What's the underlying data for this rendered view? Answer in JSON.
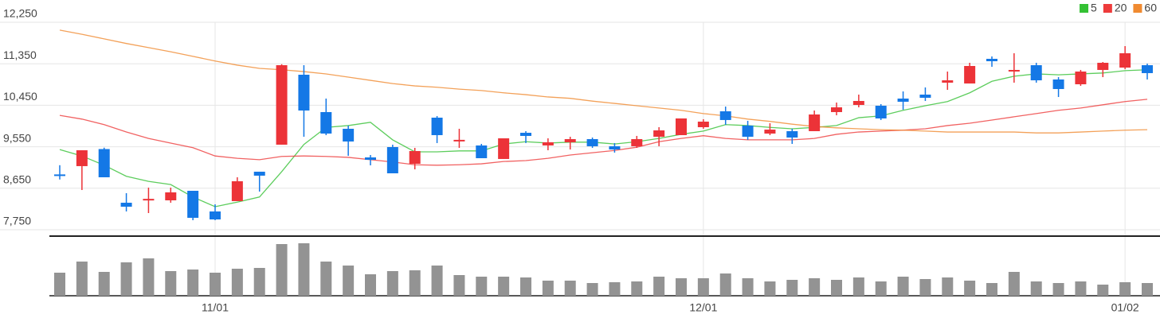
{
  "chart_data": {
    "type": "candlestick",
    "categories": [
      null,
      null,
      null,
      null,
      null,
      null,
      null,
      "11/01",
      null,
      null,
      null,
      null,
      null,
      null,
      null,
      null,
      null,
      null,
      null,
      null,
      null,
      null,
      null,
      null,
      null,
      null,
      null,
      null,
      null,
      "12/01",
      null,
      null,
      null,
      null,
      null,
      null,
      null,
      null,
      null,
      null,
      null,
      null,
      null,
      null,
      null,
      null,
      null,
      null,
      "01/02",
      null
    ],
    "open": [
      8950,
      9130,
      9500,
      8336,
      8400,
      8388,
      8595,
      8147,
      8371,
      9009,
      9595,
      11112,
      10302,
      9940,
      9319,
      9543,
      9181,
      10181,
      9690,
      9578,
      9285,
      9853,
      9578,
      9647,
      9716,
      9561,
      9561,
      9767,
      9802,
      9974,
      10319,
      10009,
      9836,
      9888,
      9888,
      10302,
      10457,
      10440,
      10595,
      10681,
      10940,
      10922,
      11457,
      11200,
      11319,
      11009,
      10905,
      11216,
      11267,
      11319
    ],
    "close": [
      8930,
      9474,
      8888,
      8250,
      8420,
      8561,
      8009,
      7974,
      8802,
      8923,
      11319,
      10336,
      9836,
      9664,
      9267,
      8974,
      9457,
      9802,
      9700,
      9302,
      9733,
      9785,
      9647,
      9716,
      9561,
      9491,
      9716,
      9905,
      10164,
      10095,
      10130,
      9767,
      9922,
      9750,
      10250,
      10405,
      10543,
      10164,
      10526,
      10612,
      10991,
      11302,
      11405,
      11216,
      10991,
      10802,
      11181,
      11371,
      11578,
      11147
    ],
    "high": [
      9150,
      9474,
      9530,
      8543,
      8664,
      8664,
      8595,
      8302,
      8888,
      9009,
      11340,
      11319,
      10595,
      10009,
      9371,
      9595,
      9526,
      10216,
      9940,
      9612,
      9733,
      9888,
      9733,
      9767,
      9750,
      9630,
      9785,
      9974,
      10164,
      10147,
      10422,
      10112,
      10060,
      9940,
      10336,
      10509,
      10681,
      10474,
      10750,
      10836,
      11181,
      11371,
      11509,
      11578,
      11371,
      11060,
      11216,
      11388,
      11733,
      11354
    ],
    "low": [
      8840,
      8612,
      8888,
      8147,
      8112,
      8336,
      7957,
      7957,
      8371,
      8578,
      9595,
      9767,
      9802,
      9354,
      9147,
      8974,
      9060,
      9630,
      9526,
      9302,
      9285,
      9630,
      9474,
      9491,
      9526,
      9423,
      9526,
      9561,
      9802,
      9940,
      10026,
      9698,
      9802,
      9612,
      9888,
      10233,
      10405,
      10130,
      10354,
      10543,
      10784,
      10922,
      11284,
      10940,
      10940,
      10629,
      10870,
      11060,
      11233,
      11009
    ],
    "up_color": "#ec3338",
    "down_color": "#1478e6",
    "series": [
      {
        "name": "5",
        "color": "#34c134",
        "values": [
          9490,
          9350,
          9150,
          8910,
          8800,
          8730,
          8460,
          8250,
          8350,
          8460,
          9010,
          9600,
          9970,
          10010,
          10080,
          9700,
          9440,
          9440,
          9460,
          9460,
          9610,
          9660,
          9630,
          9650,
          9650,
          9610,
          9660,
          9730,
          9820,
          9890,
          10030,
          10010,
          9970,
          9940,
          9970,
          10010,
          10180,
          10220,
          10340,
          10440,
          10530,
          10720,
          10970,
          11080,
          11130,
          11110,
          11130,
          11150,
          11200,
          11220
        ]
      },
      {
        "name": "20",
        "color": "#ee3b3b",
        "values": [
          10230,
          10150,
          10030,
          9870,
          9730,
          9630,
          9530,
          9350,
          9300,
          9270,
          9340,
          9350,
          9340,
          9320,
          9270,
          9220,
          9160,
          9150,
          9160,
          9180,
          9230,
          9250,
          9300,
          9370,
          9420,
          9470,
          9540,
          9660,
          9730,
          9790,
          9730,
          9700,
          9700,
          9700,
          9730,
          9820,
          9870,
          9890,
          9910,
          9940,
          10010,
          10060,
          10130,
          10200,
          10270,
          10340,
          10390,
          10460,
          10530,
          10580
        ]
      },
      {
        "name": "60",
        "color": "#f08a30",
        "values": [
          12080,
          11990,
          11890,
          11790,
          11700,
          11610,
          11510,
          11410,
          11320,
          11250,
          11220,
          11180,
          11130,
          11060,
          10990,
          10920,
          10870,
          10840,
          10800,
          10770,
          10720,
          10680,
          10630,
          10600,
          10540,
          10490,
          10440,
          10390,
          10340,
          10270,
          10220,
          10150,
          10100,
          10040,
          9990,
          9960,
          9940,
          9920,
          9910,
          9890,
          9870,
          9870,
          9870,
          9870,
          9850,
          9850,
          9870,
          9890,
          9910,
          9920
        ]
      }
    ],
    "ylim": [
      7750,
      12250
    ],
    "yticks": [
      {
        "value": 7750,
        "label": "7,750"
      },
      {
        "value": 8650,
        "label": "8,650"
      },
      {
        "value": 9550,
        "label": "9,550"
      },
      {
        "value": 10450,
        "label": "10,450"
      },
      {
        "value": 11350,
        "label": "11,350"
      },
      {
        "value": 12250,
        "label": "12,250"
      }
    ],
    "grid": true,
    "volume": [
      29,
      43,
      30,
      42,
      47,
      31,
      33,
      29,
      34,
      35,
      65,
      66,
      43,
      38,
      27,
      31,
      32,
      38,
      26,
      24,
      24,
      23,
      19,
      19,
      16,
      17,
      18,
      24,
      22,
      22,
      28,
      22,
      18,
      20,
      22,
      20,
      23,
      18,
      24,
      21,
      23,
      19,
      16,
      30,
      18,
      16,
      18,
      14,
      17,
      16
    ],
    "volume_color": "#939393",
    "volume_ylim": [
      0,
      74
    ]
  }
}
